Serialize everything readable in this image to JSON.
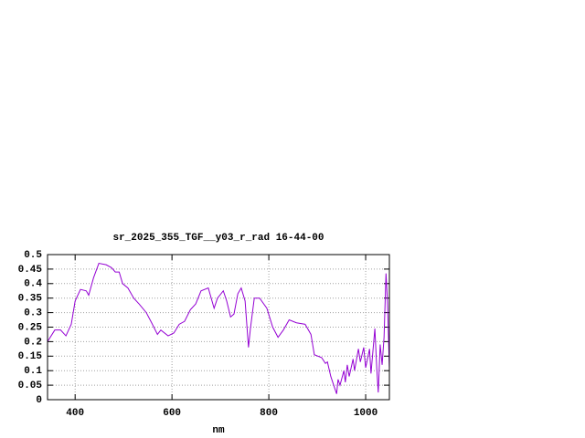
{
  "chart_data": {
    "type": "line",
    "title": "sr_2025_355_TGF__y03_r_rad 16-44-00",
    "x_label": "nm",
    "x": [
      343,
      358,
      370,
      381,
      392,
      400,
      411,
      423,
      428,
      438,
      449,
      464,
      475,
      483,
      491,
      498,
      509,
      521,
      532,
      547,
      558,
      570,
      577,
      592,
      604,
      615,
      626,
      638,
      649,
      660,
      675,
      687,
      694,
      706,
      713,
      721,
      728,
      736,
      743,
      751,
      758,
      762,
      770,
      781,
      796,
      808,
      819,
      830,
      842,
      857,
      875,
      887,
      894,
      909,
      917,
      921,
      928,
      936,
      940,
      943,
      947,
      955,
      958,
      962,
      966,
      974,
      977,
      985,
      989,
      996,
      1000,
      1008,
      1011,
      1019,
      1023,
      1026,
      1030,
      1034,
      1038,
      1042,
      1045,
      1049
    ],
    "values": [
      0.2,
      0.24,
      0.24,
      0.22,
      0.26,
      0.34,
      0.38,
      0.375,
      0.36,
      0.42,
      0.47,
      0.465,
      0.455,
      0.44,
      0.44,
      0.4,
      0.385,
      0.35,
      0.33,
      0.3,
      0.265,
      0.225,
      0.24,
      0.22,
      0.23,
      0.26,
      0.27,
      0.31,
      0.33,
      0.375,
      0.385,
      0.315,
      0.35,
      0.375,
      0.34,
      0.285,
      0.295,
      0.365,
      0.385,
      0.34,
      0.18,
      0.245,
      0.35,
      0.35,
      0.315,
      0.25,
      0.215,
      0.24,
      0.275,
      0.265,
      0.26,
      0.225,
      0.155,
      0.145,
      0.125,
      0.13,
      0.08,
      0.04,
      0.02,
      0.07,
      0.05,
      0.1,
      0.06,
      0.12,
      0.08,
      0.14,
      0.1,
      0.175,
      0.13,
      0.18,
      0.11,
      0.175,
      0.09,
      0.245,
      0.105,
      0.025,
      0.19,
      0.12,
      0.215,
      0.435,
      0.34,
      0.105
    ],
    "color": "#9400d3",
    "xlim": [
      343,
      1049
    ],
    "xticks": [
      400,
      600,
      800,
      1000
    ],
    "ylim": [
      0,
      0.5
    ],
    "yticks": [
      0,
      0.05,
      0.1,
      0.15,
      0.2,
      0.25,
      0.3,
      0.35,
      0.4,
      0.45,
      0.5
    ],
    "grid": true
  }
}
